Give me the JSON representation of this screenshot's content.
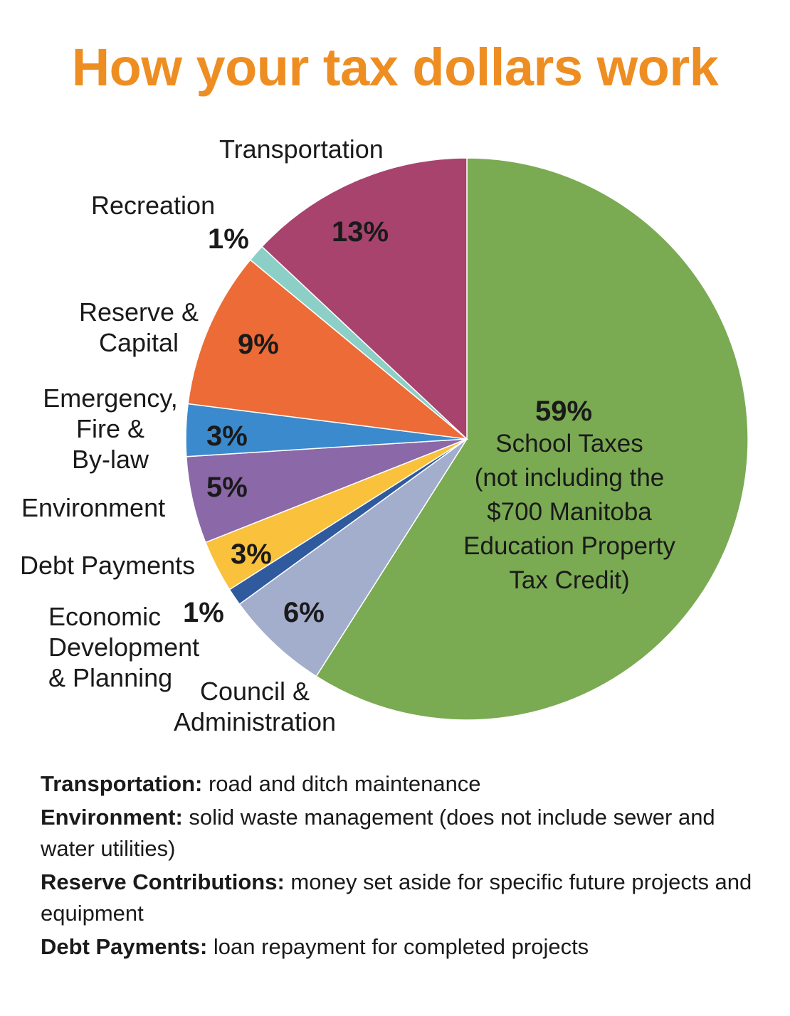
{
  "title": "How your tax dollars work",
  "colors": {
    "title": "#EE8E22",
    "slice_border": "#ffffff"
  },
  "chart_data": {
    "type": "pie",
    "title": "How your tax dollars work",
    "start_angle_deg": 0,
    "direction": "clockwise",
    "slices": [
      {
        "key": "school",
        "label": "School Taxes (not including the $700 Manitoba Education Property Tax Credit)",
        "value": 59,
        "value_label": "59%",
        "color": "#7AAA52"
      },
      {
        "key": "council",
        "label": "Council & Administration",
        "value": 6,
        "value_label": "6%",
        "color": "#A3AECD"
      },
      {
        "key": "economic",
        "label": "Economic Development & Planning",
        "value": 1,
        "value_label": "1%",
        "color": "#2F5A9E"
      },
      {
        "key": "debt",
        "label": "Debt Payments",
        "value": 3,
        "value_label": "3%",
        "color": "#F9C13C"
      },
      {
        "key": "environment",
        "label": "Environment",
        "value": 5,
        "value_label": "5%",
        "color": "#8B68A8"
      },
      {
        "key": "emergency",
        "label": "Emergency, Fire & By-law",
        "value": 3,
        "value_label": "3%",
        "color": "#3A8ACD"
      },
      {
        "key": "reserve",
        "label": "Reserve & Capital",
        "value": 9,
        "value_label": "9%",
        "color": "#EC6B36"
      },
      {
        "key": "recreation",
        "label": "Recreation",
        "value": 1,
        "value_label": "1%",
        "color": "#8CCFC7"
      },
      {
        "key": "transportation",
        "label": "Transportation",
        "value": 13,
        "value_label": "13%",
        "color": "#A8436E"
      }
    ]
  },
  "labels": {
    "transportation": "Transportation",
    "recreation": "Recreation",
    "reserve_1": "Reserve &",
    "reserve_2": "Capital",
    "emergency_1": "Emergency,",
    "emergency_2": "Fire &",
    "emergency_3": "By-law",
    "environment": "Environment",
    "debt": "Debt Payments",
    "economic_1": "Economic",
    "economic_2": "Development",
    "economic_3": "& Planning",
    "council_1": "Council &",
    "council_2": "Administration",
    "school_1": "School Taxes",
    "school_2": "(not including the",
    "school_3": "$700 Manitoba",
    "school_4": "Education Property",
    "school_5": "Tax Credit)"
  },
  "notes": [
    {
      "term": "Transportation:",
      "text": "  road and ditch maintenance"
    },
    {
      "term": "Environment:",
      "text": " solid waste management (does not include sewer and water utilities)"
    },
    {
      "term": "Reserve Contributions:",
      "text": " money set aside for specific future projects and equipment"
    },
    {
      "term": "Debt Payments:",
      "text": " loan repayment for completed projects"
    }
  ]
}
